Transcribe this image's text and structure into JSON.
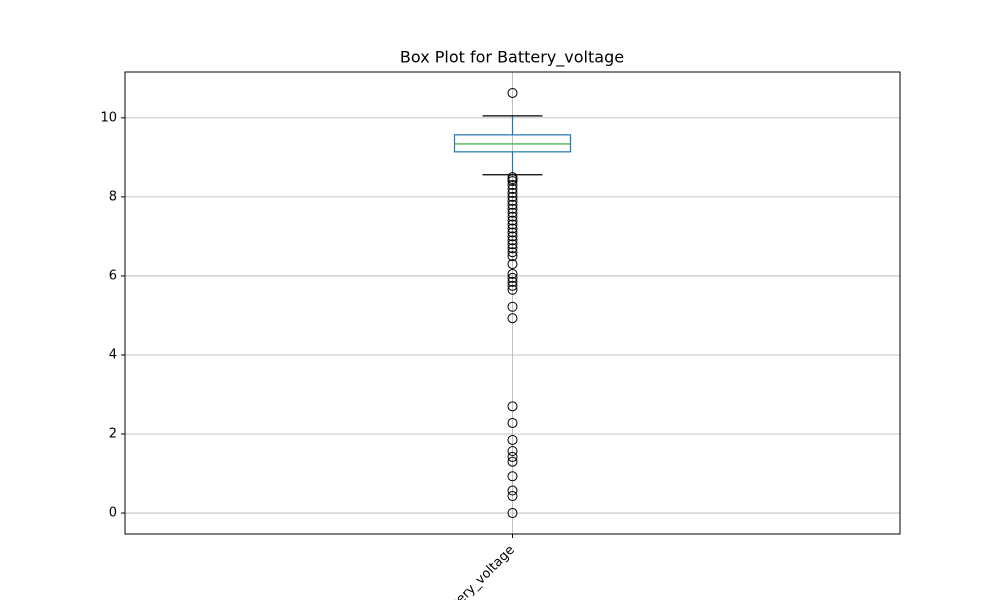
{
  "chart_data": {
    "type": "box",
    "title": "Box Plot for Battery_voltage",
    "categories": [
      "Battery_voltage"
    ],
    "boxes": [
      {
        "whislo": 8.56,
        "q1": 9.14,
        "med": 9.34,
        "q3": 9.57,
        "whishi": 10.05,
        "fliers": [
          10.63,
          8.5,
          8.45,
          8.4,
          8.3,
          8.2,
          8.1,
          8.0,
          7.9,
          7.8,
          7.7,
          7.6,
          7.5,
          7.4,
          7.3,
          7.2,
          7.1,
          7.0,
          6.9,
          6.8,
          6.7,
          6.6,
          6.5,
          6.3,
          6.05,
          5.95,
          5.85,
          5.75,
          5.65,
          5.22,
          4.93,
          2.7,
          2.28,
          1.85,
          1.57,
          1.42,
          1.3,
          0.93,
          0.57,
          0.43,
          0.0
        ]
      }
    ],
    "box_color": "#1f77b4",
    "median_color": "#2ca02c",
    "whisker_color": "#1f77b4",
    "cap_color": "#000000",
    "ylim": [
      -0.53,
      11.16
    ],
    "yticks": [
      0,
      2,
      4,
      6,
      8,
      10
    ],
    "grid": true
  }
}
